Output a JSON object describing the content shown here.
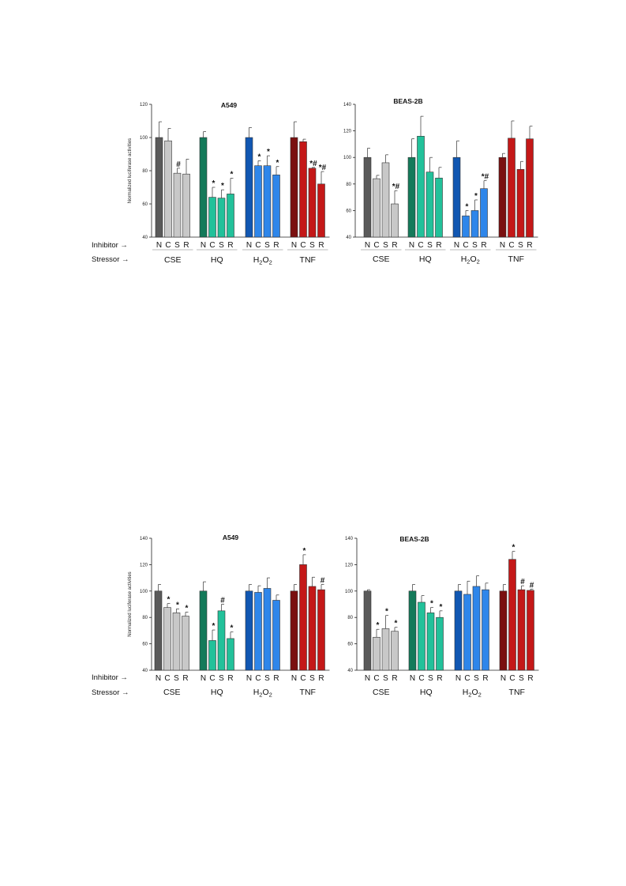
{
  "colors": {
    "N_CSE": "#5a5a5a",
    "CSE": "#c8c8c8",
    "N_HQ": "#147a5a",
    "HQ": "#22c19a",
    "N_H2O2": "#1157b2",
    "H2O2": "#2e86ea",
    "N_TNF": "#7a1010",
    "TNF": "#c41818"
  },
  "row_labels": {
    "inhibitor": "Inhibitor →",
    "stressor": "Stressor →"
  },
  "chart_data": [
    {
      "type": "bar",
      "title": "A549",
      "ylabel": "Normalized luciferase activities",
      "ylim": [
        40,
        120
      ],
      "yticks": [
        40,
        60,
        80,
        100,
        120
      ],
      "grid": false,
      "underlines": true,
      "groups": [
        {
          "label": "CSE",
          "sub": "",
          "inhibitors": [
            "N",
            "C",
            "S",
            "R"
          ],
          "values": [
            100,
            98,
            78.5,
            78
          ],
          "errors": [
            9.5,
            7.5,
            3,
            9
          ],
          "marks": [
            "",
            "",
            "#",
            ""
          ]
        },
        {
          "label": "HQ",
          "sub": "",
          "inhibitors": [
            "N",
            "C",
            "S",
            "R"
          ],
          "values": [
            100,
            64,
            63.5,
            66
          ],
          "errors": [
            3.5,
            6,
            5,
            9.5
          ],
          "marks": [
            "",
            "*",
            "*",
            "*"
          ]
        },
        {
          "label": "H",
          "sub": "2",
          "label2": "O",
          "sub2": "2",
          "inhibitors": [
            "N",
            "C",
            "S",
            "R"
          ],
          "values": [
            100,
            83,
            83,
            77.5
          ],
          "errors": [
            6,
            3,
            6,
            5
          ],
          "marks": [
            "",
            "*",
            "*",
            "*"
          ]
        },
        {
          "label": "TNF",
          "sub": "",
          "inhibitors": [
            "N",
            "C",
            "S",
            "R"
          ],
          "values": [
            100,
            97.5,
            81.5,
            72
          ],
          "errors": [
            9.5,
            1.5,
            0.5,
            7.5
          ],
          "marks": [
            "",
            "",
            "*#",
            "*#"
          ]
        }
      ]
    },
    {
      "type": "bar",
      "title": "BEAS-2B",
      "ylabel": "",
      "ylim": [
        40,
        140
      ],
      "yticks": [
        40,
        60,
        80,
        100,
        120,
        140
      ],
      "grid": false,
      "underlines": true,
      "groups": [
        {
          "label": "CSE",
          "sub": "",
          "inhibitors": [
            "N",
            "C",
            "S",
            "R"
          ],
          "values": [
            100,
            84,
            96,
            65
          ],
          "errors": [
            7,
            2.5,
            6,
            10
          ],
          "marks": [
            "",
            "",
            "",
            "*#"
          ]
        },
        {
          "label": "HQ",
          "sub": "",
          "inhibitors": [
            "N",
            "C",
            "S",
            "R"
          ],
          "values": [
            100,
            116,
            89,
            84.5
          ],
          "errors": [
            14,
            15,
            11,
            8
          ],
          "marks": [
            "",
            "",
            "",
            ""
          ]
        },
        {
          "label": "H",
          "sub": "2",
          "label2": "O",
          "sub2": "2",
          "inhibitors": [
            "N",
            "C",
            "S",
            "R"
          ],
          "values": [
            100,
            56,
            60,
            76.5
          ],
          "errors": [
            12.5,
            4,
            8,
            6
          ],
          "marks": [
            "",
            "*",
            "*",
            "*#"
          ]
        },
        {
          "label": "TNF",
          "sub": "",
          "inhibitors": [
            "N",
            "C",
            "S",
            "R"
          ],
          "values": [
            100,
            114.5,
            91,
            114
          ],
          "errors": [
            3,
            13,
            6,
            9.5
          ],
          "marks": [
            "",
            "",
            "",
            ""
          ]
        }
      ]
    },
    {
      "type": "bar",
      "title": "A549",
      "ylabel": "Normalized luciferase activities",
      "ylim": [
        40,
        140
      ],
      "yticks": [
        40,
        60,
        80,
        100,
        120,
        140
      ],
      "grid": false,
      "underlines": false,
      "groups": [
        {
          "label": "CSE",
          "sub": "",
          "inhibitors": [
            "N",
            "C",
            "S",
            "R"
          ],
          "values": [
            100,
            87.5,
            83.5,
            81
          ],
          "errors": [
            5,
            3,
            3,
            3
          ],
          "marks": [
            "",
            "*",
            "*",
            "*"
          ]
        },
        {
          "label": "HQ",
          "sub": "",
          "inhibitors": [
            "N",
            "C",
            "S",
            "R"
          ],
          "values": [
            100,
            62.5,
            85,
            64
          ],
          "errors": [
            7,
            8,
            5,
            5
          ],
          "marks": [
            "",
            "*",
            "#",
            "*"
          ]
        },
        {
          "label": "H",
          "sub": "2",
          "label2": "O",
          "sub2": "2",
          "inhibitors": [
            "N",
            "C",
            "S",
            "R"
          ],
          "values": [
            100,
            99,
            102,
            93
          ],
          "errors": [
            5,
            5,
            8,
            4
          ],
          "marks": [
            "",
            "",
            "",
            ""
          ]
        },
        {
          "label": "TNF",
          "sub": "",
          "inhibitors": [
            "N",
            "C",
            "S",
            "R"
          ],
          "values": [
            100,
            120,
            103.5,
            101
          ],
          "errors": [
            5,
            7.5,
            7,
            4
          ],
          "marks": [
            "",
            "*",
            "",
            "#"
          ]
        }
      ]
    },
    {
      "type": "bar",
      "title": "BEAS-2B",
      "ylabel": "",
      "ylim": [
        40,
        140
      ],
      "yticks": [
        40,
        60,
        80,
        100,
        120,
        140
      ],
      "grid": false,
      "underlines": false,
      "groups": [
        {
          "label": "CSE",
          "sub": "",
          "inhibitors": [
            "N",
            "C",
            "S",
            "R"
          ],
          "values": [
            100,
            65,
            71.5,
            69.5
          ],
          "errors": [
            1,
            6,
            10,
            3
          ],
          "marks": [
            "",
            "*",
            "*",
            "*"
          ]
        },
        {
          "label": "HQ",
          "sub": "",
          "inhibitors": [
            "N",
            "C",
            "S",
            "R"
          ],
          "values": [
            100,
            91.5,
            83.5,
            80
          ],
          "errors": [
            5,
            5,
            4,
            5
          ],
          "marks": [
            "",
            "",
            "*",
            "*"
          ]
        },
        {
          "label": "H",
          "sub": "2",
          "label2": "O",
          "sub2": "2",
          "inhibitors": [
            "N",
            "C",
            "S",
            "R"
          ],
          "values": [
            100,
            97.5,
            103.5,
            101
          ],
          "errors": [
            5,
            10,
            8,
            5
          ],
          "marks": [
            "",
            "",
            "",
            ""
          ]
        },
        {
          "label": "TNF",
          "sub": "",
          "inhibitors": [
            "N",
            "C",
            "S",
            "R"
          ],
          "values": [
            100,
            124,
            101,
            100.5
          ],
          "errors": [
            5,
            6,
            3,
            1
          ],
          "marks": [
            "",
            "*",
            "#",
            "#"
          ]
        }
      ]
    }
  ]
}
